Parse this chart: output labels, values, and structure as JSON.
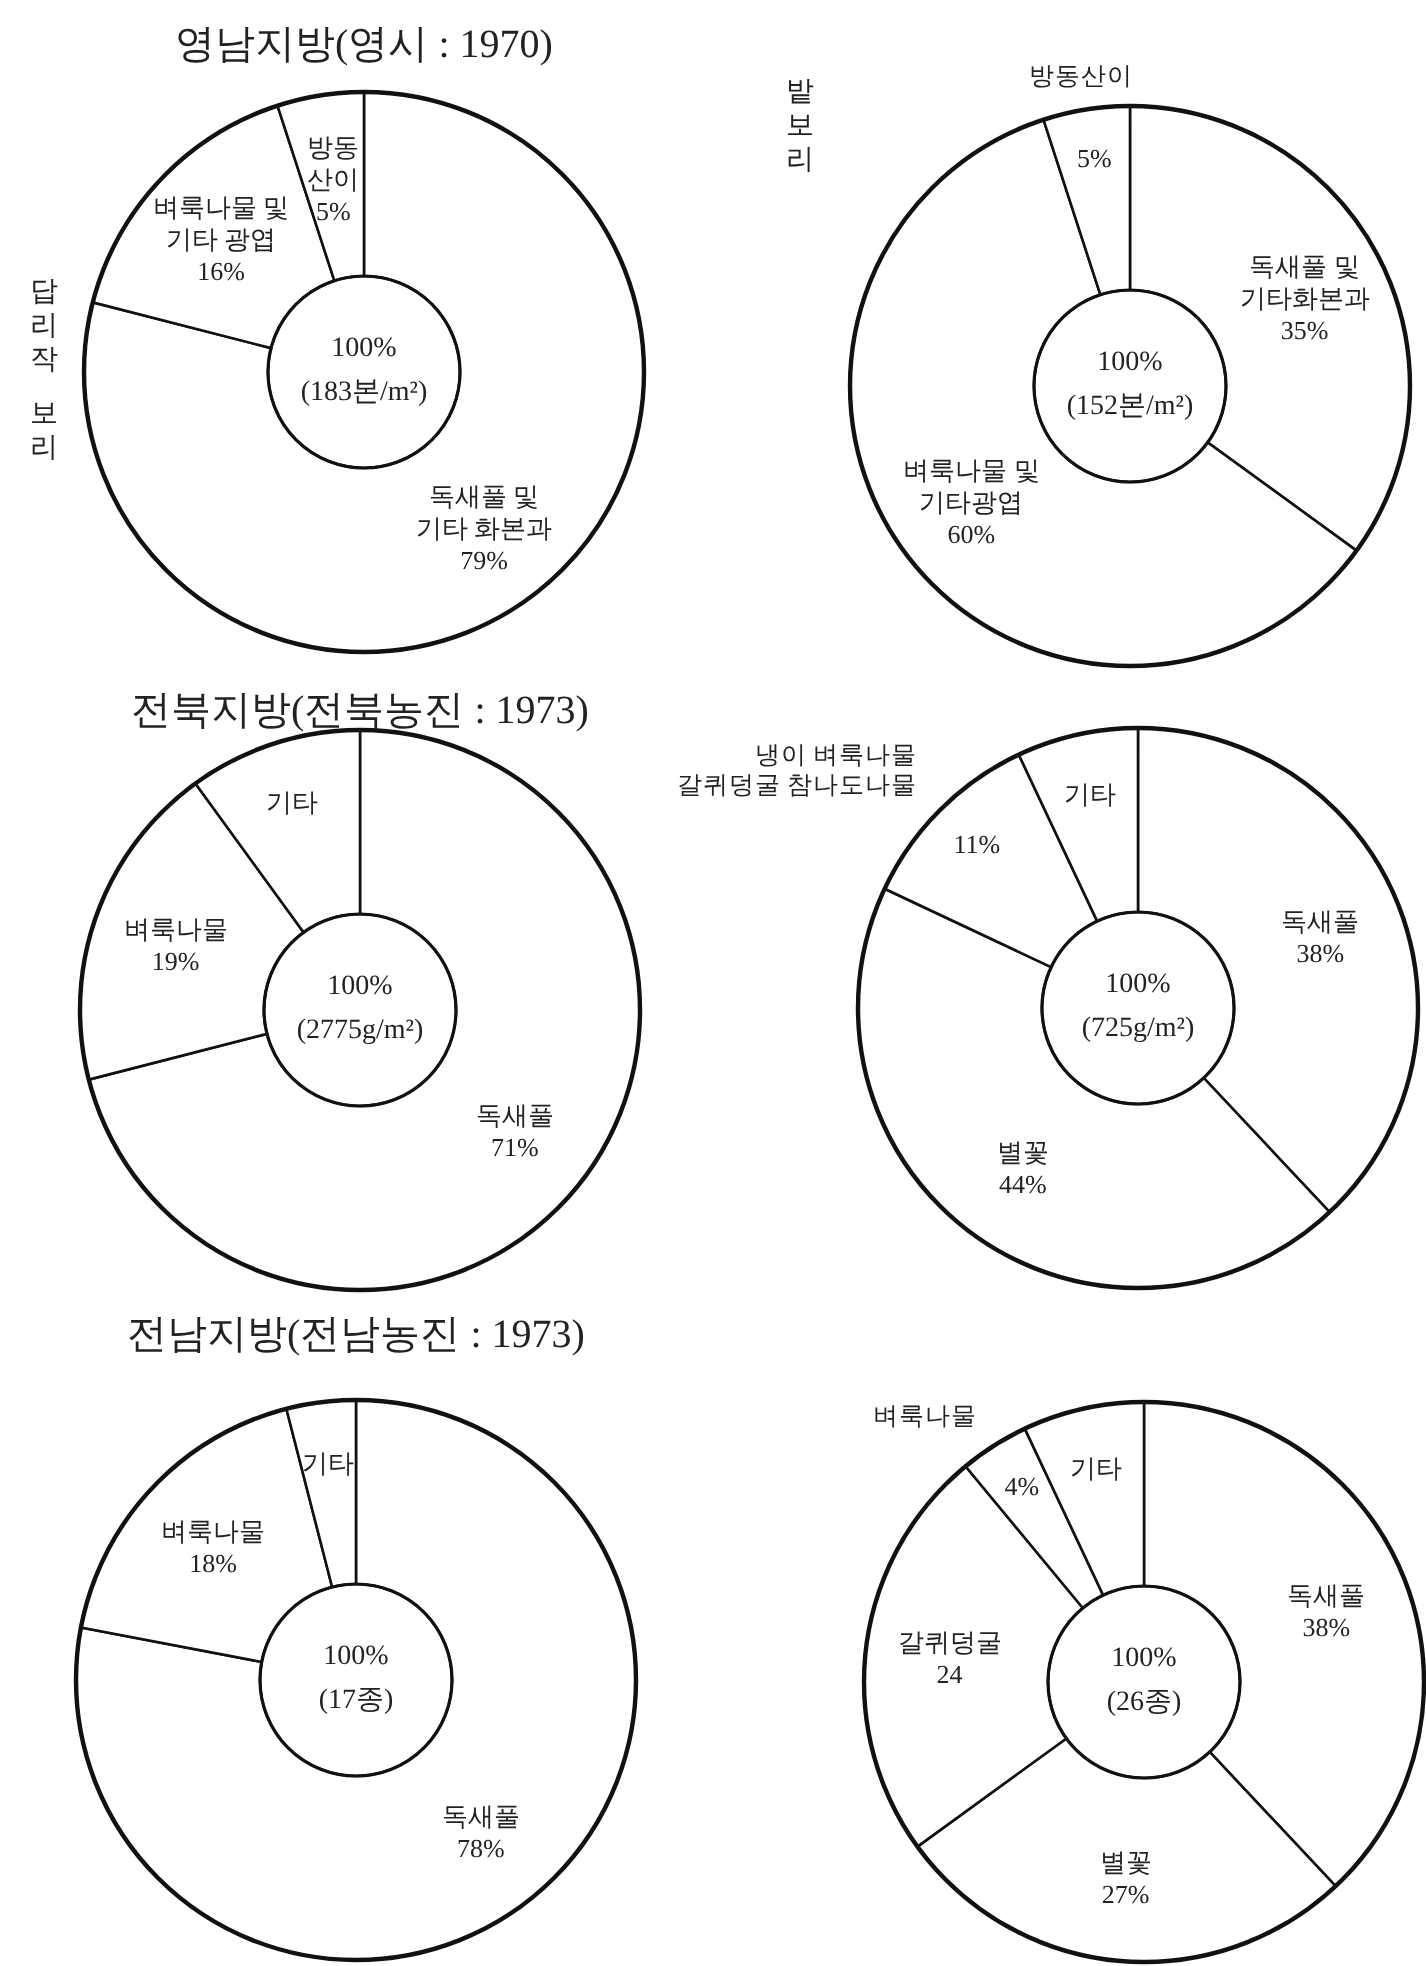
{
  "chart_data": [
    {
      "type": "donut",
      "title": "영남지방(영시 : 1970)",
      "categories": [
        "독새풀 및 기타 화본과",
        "벼룩나물 및 기타 광엽",
        "방동산이"
      ],
      "values": [
        79,
        16,
        5
      ],
      "value_labels": [
        "79%",
        "16%",
        "5%"
      ],
      "colors": [
        "#ffffff",
        "#ffffff",
        "#ffffff"
      ],
      "annotations": [
        "100%",
        "(183본/m²)",
        "답리작 보리"
      ]
    },
    {
      "type": "donut",
      "categories": [
        "독새풀 및 기타화본과",
        "벼룩나물 및 기타광엽",
        "방동산이"
      ],
      "values": [
        35,
        60,
        5
      ],
      "value_labels": [
        "35%",
        "60%",
        "5%"
      ],
      "colors": [
        "#ffffff",
        "#ffffff",
        "#ffffff"
      ],
      "annotations": [
        "100%",
        "(152본/m²)",
        "밭보리"
      ]
    },
    {
      "type": "donut",
      "title": "전북지방(전북농진 : 1973)",
      "categories": [
        "독새풀",
        "벼룩나물",
        "기타"
      ],
      "values": [
        71,
        19,
        10
      ],
      "value_labels": [
        "71%",
        "19%",
        null
      ],
      "colors": [
        "#ffffff",
        "#ffffff",
        "#ffffff"
      ],
      "annotations": [
        "100%",
        "(2775g/m²)"
      ]
    },
    {
      "type": "donut",
      "categories": [
        "독새풀",
        "별꽃",
        "냉이 벼룩나물 갈퀴덩굴 참나도나물",
        "기타"
      ],
      "values": [
        38,
        44,
        11,
        7
      ],
      "value_labels": [
        "38%",
        "44%",
        "11%",
        null
      ],
      "colors": [
        "#ffffff",
        "#ffffff",
        "#ffffff",
        "#ffffff"
      ],
      "annotations": [
        "100%",
        "(725g/m²)"
      ]
    },
    {
      "type": "donut",
      "title": "전남지방(전남농진 : 1973)",
      "categories": [
        "독새풀",
        "벼룩나물",
        "기타"
      ],
      "values": [
        78,
        18,
        4
      ],
      "value_labels": [
        "78%",
        "18%",
        null
      ],
      "colors": [
        "#ffffff",
        "#ffffff",
        "#ffffff"
      ],
      "annotations": [
        "100%",
        "(17종)"
      ]
    },
    {
      "type": "donut",
      "categories": [
        "독새풀",
        "별꽃",
        "갈퀴덩굴",
        "벼룩나물",
        "기타"
      ],
      "values": [
        38,
        27,
        24,
        4,
        7
      ],
      "value_labels": [
        "38%",
        "27%",
        "24",
        "4%",
        null
      ],
      "colors": [
        "#ffffff",
        "#ffffff",
        "#ffffff",
        "#ffffff",
        "#ffffff"
      ],
      "annotations": [
        "100%",
        "(26종)"
      ]
    }
  ]
}
